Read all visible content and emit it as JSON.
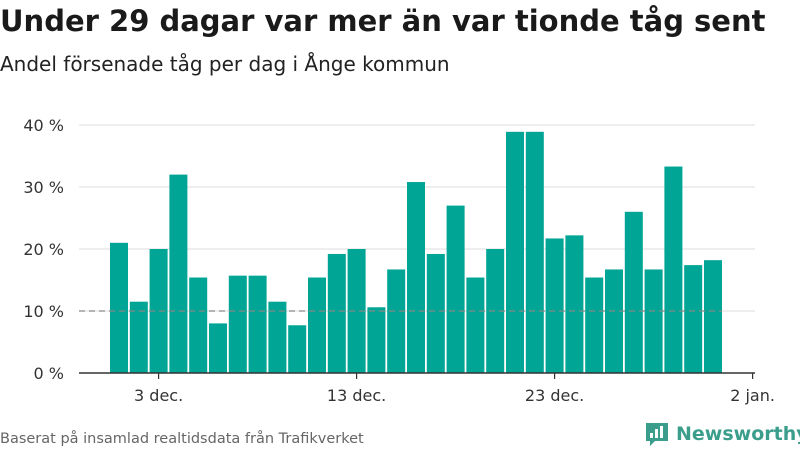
{
  "title": "Under 29 dagar var mer än var tionde tåg sent",
  "subtitle": "Andel försenade tåg per dag i Ånge kommun",
  "footer": "Baserat på insamlad realtidsdata från Trafikverket",
  "brand": {
    "name": "Newsworthy",
    "icon": "newsworthy-logo-icon",
    "color": "#3b9e8c"
  },
  "chart_data": {
    "type": "bar",
    "x": [
      "2021-12-01",
      "2021-12-02",
      "2021-12-03",
      "2021-12-04",
      "2021-12-05",
      "2021-12-06",
      "2021-12-07",
      "2021-12-08",
      "2021-12-09",
      "2021-12-10",
      "2021-12-11",
      "2021-12-12",
      "2021-12-13",
      "2021-12-14",
      "2021-12-15",
      "2021-12-16",
      "2021-12-17",
      "2021-12-18",
      "2021-12-19",
      "2021-12-20",
      "2021-12-21",
      "2021-12-22",
      "2021-12-23",
      "2021-12-24",
      "2021-12-25",
      "2021-12-26",
      "2021-12-27",
      "2021-12-28",
      "2021-12-29",
      "2021-12-30",
      "2021-12-31"
    ],
    "values": [
      21,
      11.5,
      20,
      32,
      15.4,
      8,
      15.7,
      15.7,
      11.5,
      7.7,
      15.4,
      19.2,
      20,
      10.6,
      16.7,
      30.8,
      19.2,
      27,
      15.4,
      20,
      38.9,
      38.9,
      21.7,
      22.2,
      15.4,
      16.7,
      26,
      16.7,
      33.3,
      17.4,
      18.2
    ],
    "xticks": [
      {
        "date": "2021-12-03",
        "label": "3 dec."
      },
      {
        "date": "2021-12-13",
        "label": "13 dec."
      },
      {
        "date": "2021-12-23",
        "label": "23 dec."
      },
      {
        "date": "2022-01-02",
        "label": "2 jan."
      }
    ],
    "yticks": [
      {
        "value": 0,
        "label": "0 %"
      },
      {
        "value": 10,
        "label": "10 %"
      },
      {
        "value": 20,
        "label": "20 %"
      },
      {
        "value": 30,
        "label": "30 %"
      },
      {
        "value": 40,
        "label": "40 %"
      }
    ],
    "ylim": [
      0,
      40
    ],
    "reference_line": 10,
    "grid": true,
    "colors": {
      "bar": "#00a595",
      "grid": "#dddddd",
      "axis": "#333333",
      "reference": "#888888"
    }
  }
}
